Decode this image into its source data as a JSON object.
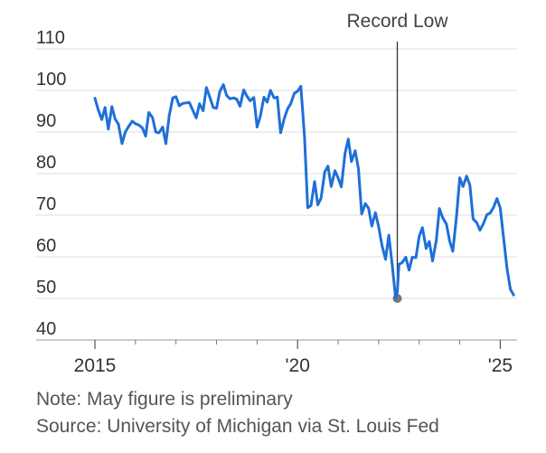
{
  "chart_data": {
    "type": "line",
    "title": "",
    "xlabel": "",
    "ylabel": "",
    "x_tick_labels": [
      {
        "label": "2015",
        "x": 2015.0
      },
      {
        "label": "'20",
        "x": 2020.0
      },
      {
        "label": "'25",
        "x": 2025.0
      }
    ],
    "x_minor_ticks": [
      2016,
      2017,
      2018,
      2019,
      2021,
      2022,
      2023,
      2024
    ],
    "y_ticks": [
      40,
      50,
      60,
      70,
      80,
      90,
      100,
      110
    ],
    "ylim": [
      40,
      110
    ],
    "xlim": [
      2015.0,
      2025.37
    ],
    "grid": true,
    "annotation": {
      "label": "Record Low",
      "x": 2022.46,
      "y": 50.0
    },
    "series": [
      {
        "name": "",
        "color": "#1f6fd8",
        "x": [
          2015.0,
          2015.08,
          2015.17,
          2015.25,
          2015.33,
          2015.42,
          2015.5,
          2015.58,
          2015.67,
          2015.75,
          2015.83,
          2015.92,
          2016.0,
          2016.08,
          2016.17,
          2016.25,
          2016.33,
          2016.42,
          2016.5,
          2016.58,
          2016.67,
          2016.75,
          2016.83,
          2016.92,
          2017.0,
          2017.08,
          2017.17,
          2017.25,
          2017.33,
          2017.42,
          2017.5,
          2017.58,
          2017.67,
          2017.75,
          2017.83,
          2017.92,
          2018.0,
          2018.08,
          2018.17,
          2018.25,
          2018.33,
          2018.42,
          2018.5,
          2018.58,
          2018.67,
          2018.75,
          2018.83,
          2018.92,
          2019.0,
          2019.08,
          2019.17,
          2019.25,
          2019.33,
          2019.42,
          2019.5,
          2019.58,
          2019.67,
          2019.75,
          2019.83,
          2019.92,
          2020.0,
          2020.08,
          2020.17,
          2020.25,
          2020.33,
          2020.42,
          2020.5,
          2020.58,
          2020.67,
          2020.75,
          2020.83,
          2020.92,
          2021.0,
          2021.08,
          2021.17,
          2021.25,
          2021.33,
          2021.42,
          2021.5,
          2021.58,
          2021.67,
          2021.75,
          2021.83,
          2021.92,
          2022.0,
          2022.08,
          2022.17,
          2022.25,
          2022.33,
          2022.42,
          2022.46,
          2022.5,
          2022.58,
          2022.67,
          2022.75,
          2022.83,
          2022.92,
          2023.0,
          2023.08,
          2023.17,
          2023.25,
          2023.33,
          2023.42,
          2023.5,
          2023.58,
          2023.67,
          2023.75,
          2023.83,
          2023.92,
          2024.0,
          2024.08,
          2024.17,
          2024.25,
          2024.33,
          2024.42,
          2024.5,
          2024.58,
          2024.67,
          2024.75,
          2024.83,
          2024.92,
          2025.0,
          2025.08,
          2025.17,
          2025.25,
          2025.33
        ],
        "values": [
          98.1,
          95.4,
          93.0,
          95.9,
          90.7,
          96.1,
          93.1,
          91.9,
          87.2,
          90.0,
          91.3,
          92.6,
          92.0,
          91.7,
          91.0,
          89.0,
          94.7,
          93.5,
          90.0,
          89.8,
          91.2,
          87.2,
          93.8,
          98.2,
          98.5,
          96.3,
          96.9,
          97.0,
          97.1,
          95.1,
          93.4,
          96.8,
          95.1,
          100.7,
          98.5,
          95.9,
          95.7,
          99.7,
          101.4,
          98.8,
          98.0,
          98.2,
          97.9,
          96.2,
          100.1,
          98.6,
          97.5,
          98.3,
          91.2,
          93.8,
          98.4,
          97.2,
          100.0,
          98.2,
          98.4,
          89.8,
          93.2,
          95.5,
          96.8,
          99.3,
          99.8,
          101.0,
          89.1,
          71.8,
          72.3,
          78.1,
          72.5,
          74.1,
          80.4,
          81.8,
          76.9,
          80.7,
          79.0,
          76.8,
          84.9,
          88.3,
          82.9,
          85.5,
          81.2,
          70.3,
          72.8,
          71.7,
          67.4,
          70.6,
          67.2,
          62.8,
          59.4,
          65.2,
          58.4,
          50.0,
          51.5,
          58.2,
          58.6,
          59.9,
          56.8,
          59.9,
          59.8,
          64.9,
          67.0,
          62.0,
          63.7,
          59.0,
          63.9,
          71.6,
          69.4,
          67.9,
          63.8,
          61.3,
          69.7,
          79.0,
          76.9,
          79.4,
          77.2,
          69.1,
          68.2,
          66.4,
          67.9,
          70.1,
          70.5,
          71.8,
          74.0,
          71.7,
          64.7,
          57.0,
          52.2,
          50.8
        ]
      }
    ]
  },
  "notes": {
    "line1": "Note: May figure is preliminary",
    "line2": "Source: University of Michigan via St. Louis Fed"
  }
}
